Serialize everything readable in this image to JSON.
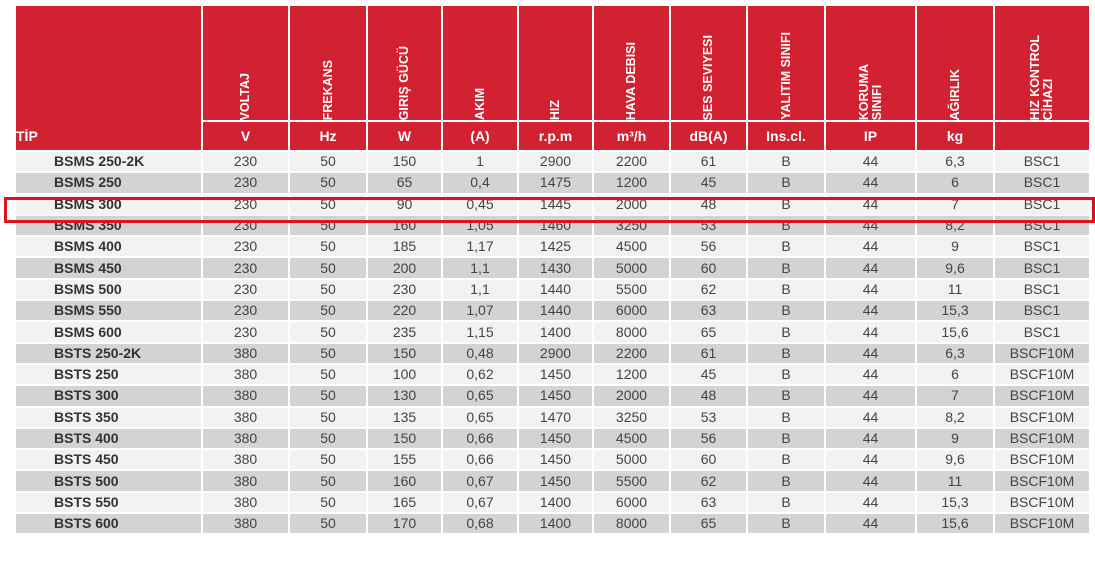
{
  "table": {
    "tip_header": "TİP",
    "columns": [
      {
        "name": "VOLTAJ",
        "unit": "V"
      },
      {
        "name": "FREKANS",
        "unit": "Hz"
      },
      {
        "name": "GIRIŞ GÜCÜ",
        "unit": "W"
      },
      {
        "name": "AKIM",
        "unit": "(A)"
      },
      {
        "name": "HIZ",
        "unit": "r.p.m"
      },
      {
        "name": "HAVA DEBISI",
        "unit": "m³/h"
      },
      {
        "name": "SES SEVIYESI",
        "unit": "dB(A)"
      },
      {
        "name": "YALITIM SINIFI",
        "unit": "Ins.cl."
      },
      {
        "name": "KORUMA\nSINIFI",
        "unit": "IP"
      },
      {
        "name": "AĞIRLIK",
        "unit": "kg"
      },
      {
        "name": "HIZ KONTROL\nCİHAZI",
        "unit": ""
      }
    ],
    "rows": [
      [
        "BSMS 250-2K",
        "230",
        "50",
        "150",
        "1",
        "2900",
        "2200",
        "61",
        "B",
        "44",
        "6,3",
        "BSC1"
      ],
      [
        "BSMS 250",
        "230",
        "50",
        "65",
        "0,4",
        "1475",
        "1200",
        "45",
        "B",
        "44",
        "6",
        "BSC1"
      ],
      [
        "BSMS 300",
        "230",
        "50",
        "90",
        "0,45",
        "1445",
        "2000",
        "48",
        "B",
        "44",
        "7",
        "BSC1"
      ],
      [
        "BSMS 350",
        "230",
        "50",
        "160",
        "1,05",
        "1460",
        "3250",
        "53",
        "B",
        "44",
        "8,2",
        "BSC1"
      ],
      [
        "BSMS 400",
        "230",
        "50",
        "185",
        "1,17",
        "1425",
        "4500",
        "56",
        "B",
        "44",
        "9",
        "BSC1"
      ],
      [
        "BSMS 450",
        "230",
        "50",
        "200",
        "1,1",
        "1430",
        "5000",
        "60",
        "B",
        "44",
        "9,6",
        "BSC1"
      ],
      [
        "BSMS 500",
        "230",
        "50",
        "230",
        "1,1",
        "1440",
        "5500",
        "62",
        "B",
        "44",
        "11",
        "BSC1"
      ],
      [
        "BSMS 550",
        "230",
        "50",
        "220",
        "1,07",
        "1440",
        "6000",
        "63",
        "B",
        "44",
        "15,3",
        "BSC1"
      ],
      [
        "BSMS 600",
        "230",
        "50",
        "235",
        "1,15",
        "1400",
        "8000",
        "65",
        "B",
        "44",
        "15,6",
        "BSC1"
      ],
      [
        "BSTS 250-2K",
        "380",
        "50",
        "150",
        "0,48",
        "2900",
        "2200",
        "61",
        "B",
        "44",
        "6,3",
        "BSCF10M"
      ],
      [
        "BSTS 250",
        "380",
        "50",
        "100",
        "0,62",
        "1450",
        "1200",
        "45",
        "B",
        "44",
        "6",
        "BSCF10M"
      ],
      [
        "BSTS 300",
        "380",
        "50",
        "130",
        "0,65",
        "1450",
        "2000",
        "48",
        "B",
        "44",
        "7",
        "BSCF10M"
      ],
      [
        "BSTS 350",
        "380",
        "50",
        "135",
        "0,65",
        "1470",
        "3250",
        "53",
        "B",
        "44",
        "8,2",
        "BSCF10M"
      ],
      [
        "BSTS 400",
        "380",
        "50",
        "150",
        "0,66",
        "1450",
        "4500",
        "56",
        "B",
        "44",
        "9",
        "BSCF10M"
      ],
      [
        "BSTS 450",
        "380",
        "50",
        "155",
        "0,66",
        "1450",
        "5000",
        "60",
        "B",
        "44",
        "9,6",
        "BSCF10M"
      ],
      [
        "BSTS 500",
        "380",
        "50",
        "160",
        "0,67",
        "1450",
        "5500",
        "62",
        "B",
        "44",
        "11",
        "BSCF10M"
      ],
      [
        "BSTS 550",
        "380",
        "50",
        "165",
        "0,67",
        "1400",
        "6000",
        "63",
        "B",
        "44",
        "15,3",
        "BSCF10M"
      ],
      [
        "BSTS 600",
        "380",
        "50",
        "170",
        "0,68",
        "1400",
        "8000",
        "65",
        "B",
        "44",
        "15,6",
        "BSCF10M"
      ]
    ],
    "highlighted_row": "BSMS 300"
  },
  "colors": {
    "header_red": "#d22130",
    "highlight_border": "#e0111d",
    "row_light": "#f2f2f2",
    "row_dark": "#d2d3d4"
  }
}
